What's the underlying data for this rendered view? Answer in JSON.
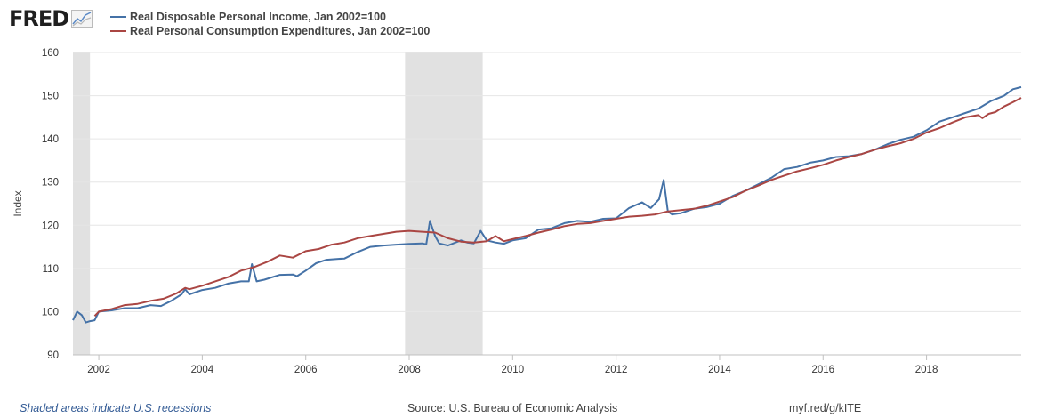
{
  "header": {
    "logo_text": "FRED",
    "legend": [
      {
        "label": "Real Disposable Personal Income, Jan 2002=100",
        "color": "#4572a7"
      },
      {
        "label": "Real Personal Consumption Expenditures, Jan 2002=100",
        "color": "#aa4643"
      }
    ]
  },
  "footer": {
    "recession_note": "Shaded areas indicate U.S. recessions",
    "source": "Source: U.S. Bureau of Economic Analysis",
    "shortlink": "myf.red/g/kITE"
  },
  "chart_data": {
    "type": "line",
    "title": "",
    "xlabel": "",
    "ylabel": "Index",
    "xlim": [
      2001.5,
      2019.83
    ],
    "ylim": [
      90,
      160
    ],
    "yticks": [
      90,
      100,
      110,
      120,
      130,
      140,
      150,
      160
    ],
    "xticks": [
      2002,
      2004,
      2006,
      2008,
      2010,
      2012,
      2014,
      2016,
      2018
    ],
    "grid": "horizontal",
    "recessions": [
      [
        2001.5,
        2001.83
      ],
      [
        2007.92,
        2009.42
      ]
    ],
    "series": [
      {
        "name": "Real Disposable Personal Income, Jan 2002=100",
        "color": "#4572a7",
        "points": [
          [
            2001.5,
            98.0
          ],
          [
            2001.58,
            100.0
          ],
          [
            2001.67,
            99.2
          ],
          [
            2001.75,
            97.5
          ],
          [
            2001.83,
            97.8
          ],
          [
            2001.92,
            98.0
          ],
          [
            2002.0,
            100.0
          ],
          [
            2002.25,
            100.3
          ],
          [
            2002.5,
            100.8
          ],
          [
            2002.75,
            100.8
          ],
          [
            2003.0,
            101.5
          ],
          [
            2003.2,
            101.3
          ],
          [
            2003.4,
            102.5
          ],
          [
            2003.6,
            104.0
          ],
          [
            2003.67,
            105.2
          ],
          [
            2003.75,
            104.0
          ],
          [
            2004.0,
            105.0
          ],
          [
            2004.25,
            105.5
          ],
          [
            2004.5,
            106.5
          ],
          [
            2004.75,
            107.0
          ],
          [
            2004.9,
            107.0
          ],
          [
            2004.96,
            111.0
          ],
          [
            2005.05,
            107.0
          ],
          [
            2005.2,
            107.4
          ],
          [
            2005.5,
            108.5
          ],
          [
            2005.75,
            108.6
          ],
          [
            2005.83,
            108.2
          ],
          [
            2006.0,
            109.5
          ],
          [
            2006.2,
            111.2
          ],
          [
            2006.4,
            112.0
          ],
          [
            2006.6,
            112.2
          ],
          [
            2006.75,
            112.3
          ],
          [
            2007.0,
            113.8
          ],
          [
            2007.25,
            115.0
          ],
          [
            2007.5,
            115.3
          ],
          [
            2007.75,
            115.5
          ],
          [
            2008.0,
            115.7
          ],
          [
            2008.25,
            115.8
          ],
          [
            2008.33,
            115.6
          ],
          [
            2008.4,
            121.0
          ],
          [
            2008.5,
            117.5
          ],
          [
            2008.58,
            115.8
          ],
          [
            2008.75,
            115.3
          ],
          [
            2009.0,
            116.5
          ],
          [
            2009.12,
            116.0
          ],
          [
            2009.25,
            115.8
          ],
          [
            2009.38,
            118.7
          ],
          [
            2009.5,
            116.5
          ],
          [
            2009.67,
            116.0
          ],
          [
            2009.83,
            115.7
          ],
          [
            2010.0,
            116.5
          ],
          [
            2010.25,
            117.0
          ],
          [
            2010.5,
            119.0
          ],
          [
            2010.75,
            119.3
          ],
          [
            2011.0,
            120.5
          ],
          [
            2011.25,
            121.0
          ],
          [
            2011.5,
            120.8
          ],
          [
            2011.75,
            121.5
          ],
          [
            2012.0,
            121.6
          ],
          [
            2012.25,
            124.0
          ],
          [
            2012.5,
            125.3
          ],
          [
            2012.67,
            124.0
          ],
          [
            2012.83,
            126.0
          ],
          [
            2012.92,
            130.5
          ],
          [
            2013.0,
            123.2
          ],
          [
            2013.08,
            122.5
          ],
          [
            2013.25,
            122.8
          ],
          [
            2013.5,
            123.8
          ],
          [
            2013.75,
            124.2
          ],
          [
            2014.0,
            125.0
          ],
          [
            2014.25,
            126.8
          ],
          [
            2014.5,
            128.0
          ],
          [
            2014.75,
            129.5
          ],
          [
            2015.0,
            131.0
          ],
          [
            2015.25,
            133.0
          ],
          [
            2015.5,
            133.5
          ],
          [
            2015.75,
            134.5
          ],
          [
            2016.0,
            135.0
          ],
          [
            2016.25,
            135.8
          ],
          [
            2016.5,
            136.0
          ],
          [
            2016.75,
            136.5
          ],
          [
            2017.0,
            137.5
          ],
          [
            2017.25,
            138.8
          ],
          [
            2017.5,
            139.8
          ],
          [
            2017.75,
            140.5
          ],
          [
            2018.0,
            142.0
          ],
          [
            2018.25,
            144.0
          ],
          [
            2018.5,
            145.0
          ],
          [
            2018.75,
            146.0
          ],
          [
            2019.0,
            147.0
          ],
          [
            2019.25,
            148.8
          ],
          [
            2019.5,
            150.0
          ],
          [
            2019.67,
            151.5
          ],
          [
            2019.83,
            152.0
          ]
        ]
      },
      {
        "name": "Real Personal Consumption Expenditures, Jan 2002=100",
        "color": "#aa4643",
        "points": [
          [
            2001.92,
            99.0
          ],
          [
            2002.0,
            100.0
          ],
          [
            2002.25,
            100.6
          ],
          [
            2002.5,
            101.5
          ],
          [
            2002.75,
            101.8
          ],
          [
            2003.0,
            102.5
          ],
          [
            2003.25,
            103.0
          ],
          [
            2003.5,
            104.2
          ],
          [
            2003.67,
            105.5
          ],
          [
            2003.75,
            105.2
          ],
          [
            2004.0,
            106.0
          ],
          [
            2004.25,
            107.0
          ],
          [
            2004.5,
            108.0
          ],
          [
            2004.75,
            109.5
          ],
          [
            2005.0,
            110.3
          ],
          [
            2005.25,
            111.5
          ],
          [
            2005.5,
            113.0
          ],
          [
            2005.75,
            112.5
          ],
          [
            2006.0,
            114.0
          ],
          [
            2006.25,
            114.5
          ],
          [
            2006.5,
            115.5
          ],
          [
            2006.75,
            116.0
          ],
          [
            2007.0,
            117.0
          ],
          [
            2007.25,
            117.5
          ],
          [
            2007.5,
            118.0
          ],
          [
            2007.75,
            118.5
          ],
          [
            2008.0,
            118.7
          ],
          [
            2008.25,
            118.5
          ],
          [
            2008.5,
            118.3
          ],
          [
            2008.75,
            117.0
          ],
          [
            2009.0,
            116.2
          ],
          [
            2009.25,
            116.0
          ],
          [
            2009.5,
            116.3
          ],
          [
            2009.67,
            117.5
          ],
          [
            2009.83,
            116.3
          ],
          [
            2010.0,
            116.8
          ],
          [
            2010.25,
            117.5
          ],
          [
            2010.5,
            118.3
          ],
          [
            2010.75,
            119.0
          ],
          [
            2011.0,
            119.8
          ],
          [
            2011.25,
            120.3
          ],
          [
            2011.5,
            120.5
          ],
          [
            2011.75,
            121.0
          ],
          [
            2012.0,
            121.5
          ],
          [
            2012.25,
            122.0
          ],
          [
            2012.5,
            122.2
          ],
          [
            2012.75,
            122.5
          ],
          [
            2013.0,
            123.2
          ],
          [
            2013.25,
            123.5
          ],
          [
            2013.5,
            123.8
          ],
          [
            2013.75,
            124.5
          ],
          [
            2014.0,
            125.5
          ],
          [
            2014.25,
            126.5
          ],
          [
            2014.5,
            128.0
          ],
          [
            2014.75,
            129.2
          ],
          [
            2015.0,
            130.5
          ],
          [
            2015.25,
            131.5
          ],
          [
            2015.5,
            132.5
          ],
          [
            2015.75,
            133.2
          ],
          [
            2016.0,
            134.0
          ],
          [
            2016.25,
            135.0
          ],
          [
            2016.5,
            135.8
          ],
          [
            2016.75,
            136.5
          ],
          [
            2017.0,
            137.5
          ],
          [
            2017.25,
            138.3
          ],
          [
            2017.5,
            139.0
          ],
          [
            2017.75,
            140.0
          ],
          [
            2018.0,
            141.5
          ],
          [
            2018.25,
            142.5
          ],
          [
            2018.5,
            143.8
          ],
          [
            2018.75,
            145.0
          ],
          [
            2019.0,
            145.5
          ],
          [
            2019.08,
            144.8
          ],
          [
            2019.2,
            145.8
          ],
          [
            2019.33,
            146.2
          ],
          [
            2019.5,
            147.5
          ],
          [
            2019.67,
            148.5
          ],
          [
            2019.83,
            149.5
          ]
        ]
      }
    ]
  }
}
